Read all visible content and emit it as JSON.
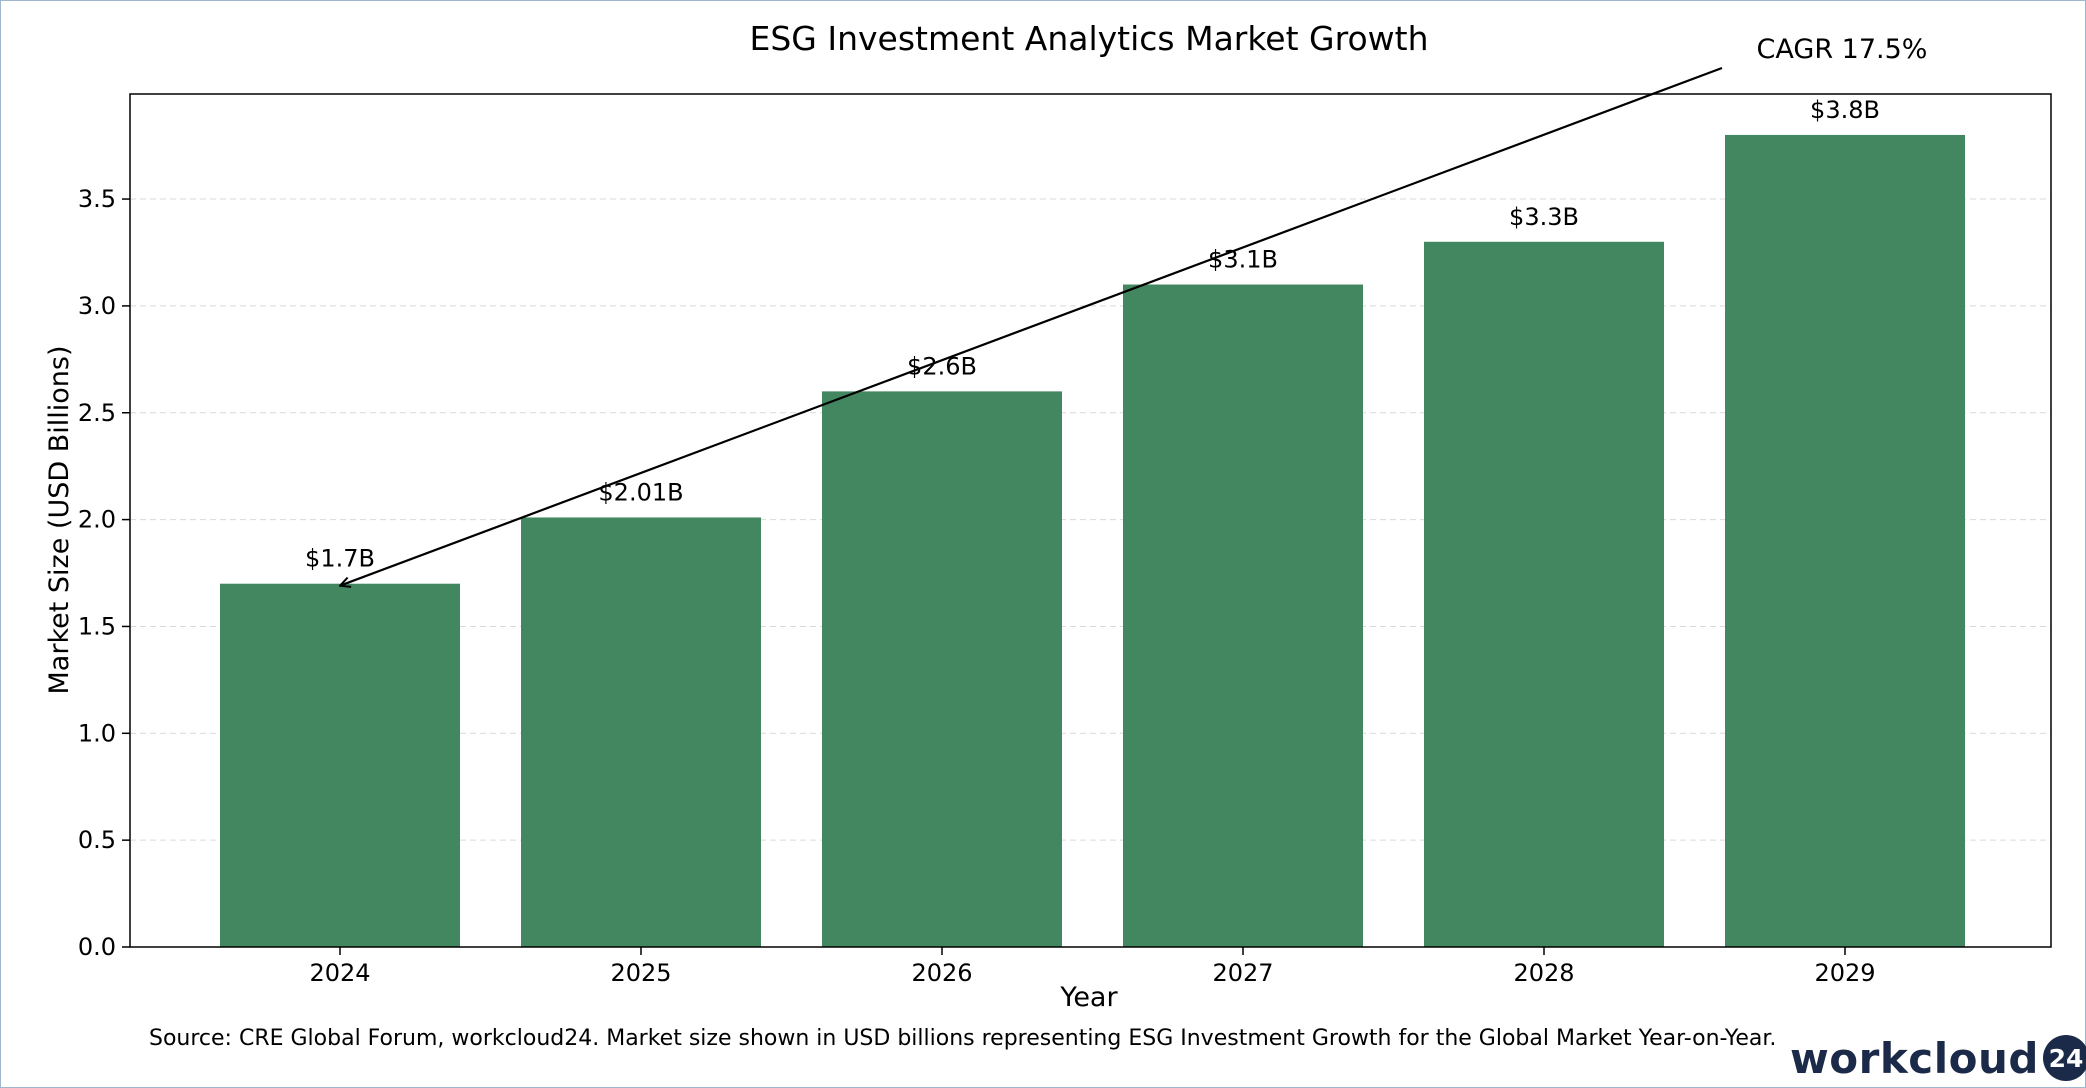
{
  "chart_data": {
    "type": "bar",
    "title": "ESG Investment Analytics Market Growth",
    "xlabel": "Year",
    "ylabel": "Market Size (USD Billions)",
    "categories": [
      "2024",
      "2025",
      "2026",
      "2027",
      "2028",
      "2029"
    ],
    "values": [
      1.7,
      2.01,
      2.6,
      3.1,
      3.3,
      3.8
    ],
    "data_labels": [
      "$1.7B",
      "$2.01B",
      "$2.6B",
      "$3.1B",
      "$3.3B",
      "$3.8B"
    ],
    "ylim": [
      0,
      4.0
    ],
    "yticks": [
      0.0,
      0.5,
      1.0,
      1.5,
      2.0,
      2.5,
      3.0,
      3.5
    ],
    "ytick_labels": [
      "0.0",
      "0.5",
      "1.0",
      "1.5",
      "2.0",
      "2.5",
      "3.0",
      "3.5"
    ],
    "grid": "y-dashed",
    "bar_color": "#438760",
    "annotation": {
      "text": "CAGR 17.5%",
      "arrow_to_category": "2024",
      "arrow_to_value": 1.7
    }
  },
  "footer": {
    "source": "Source: CRE Global Forum, workcloud24. Market size shown in USD billions representing ESG Investment Growth for the Global Market Year-on-Year.",
    "logo_text": "workcloud",
    "logo_badge": "24"
  },
  "colors": {
    "logo": "#1b2a49",
    "frame": "#9fb6cf"
  }
}
